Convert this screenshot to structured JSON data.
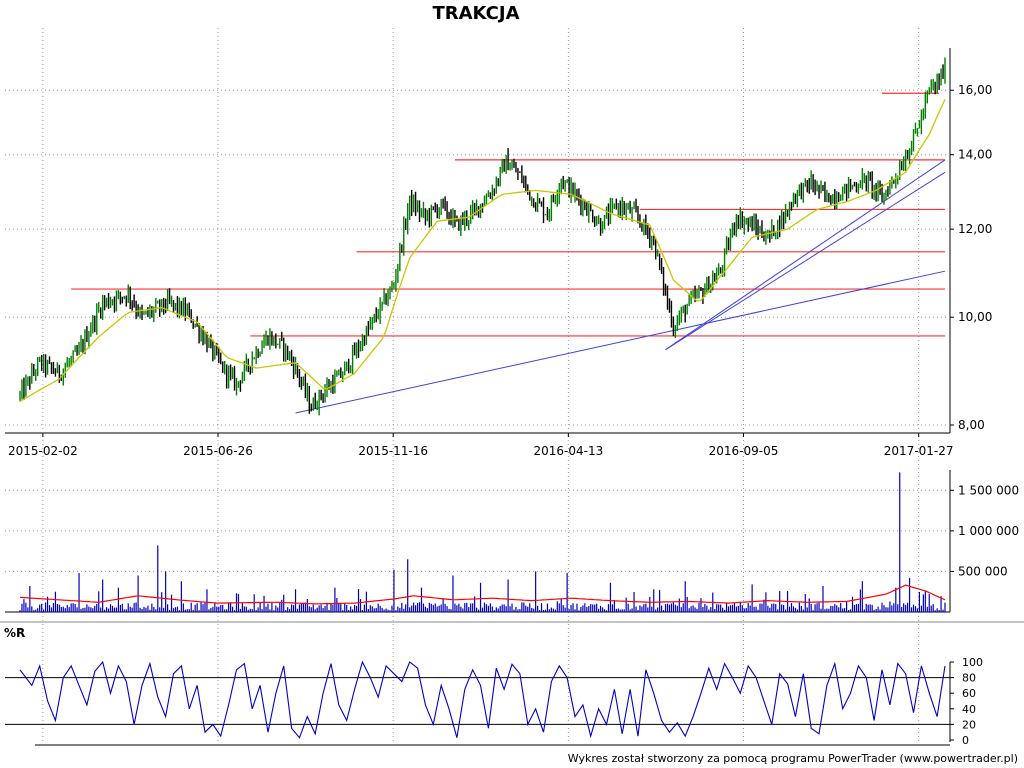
{
  "chart_data": [
    {
      "type": "line",
      "panel": "price",
      "title": "TRAKCJA",
      "y_scale": "log",
      "ylim": [
        7.95,
        18.2
      ],
      "yticks": [
        8,
        10,
        12,
        14,
        16
      ],
      "ytick_labels": [
        "8,00",
        "10,00",
        "12,00",
        "14,00",
        "16,00"
      ],
      "date_labels": [
        "2015-02-02",
        "2015-06-26",
        "2015-11-16",
        "2016-04-13",
        "2016-09-05",
        "2017-01-27"
      ],
      "grid": true,
      "colors": {
        "price": "#000000",
        "up_bar": "#008000",
        "ma": "#c8c800",
        "support": "#ff3030",
        "trend": "#4040e0"
      },
      "series": [
        {
          "kind": "close",
          "points": [
            [
              0,
              8.5
            ],
            [
              10,
              9.1
            ],
            [
              20,
              8.9
            ],
            [
              30,
              9.3
            ],
            [
              42,
              10.3
            ],
            [
              55,
              10.5
            ],
            [
              62,
              10.0
            ],
            [
              75,
              10.3
            ],
            [
              85,
              10.1
            ],
            [
              95,
              9.5
            ],
            [
              103,
              9.0
            ],
            [
              110,
              8.7
            ],
            [
              118,
              9.2
            ],
            [
              126,
              9.6
            ],
            [
              134,
              9.4
            ],
            [
              140,
              9.0
            ],
            [
              148,
              8.3
            ],
            [
              155,
              8.6
            ],
            [
              164,
              8.9
            ],
            [
              172,
              9.4
            ],
            [
              182,
              10.1
            ],
            [
              190,
              10.7
            ],
            [
              198,
              12.7
            ],
            [
              206,
              12.3
            ],
            [
              214,
              12.6
            ],
            [
              222,
              12.1
            ],
            [
              230,
              12.4
            ],
            [
              240,
              13.0
            ],
            [
              247,
              13.8
            ],
            [
              254,
              13.4
            ],
            [
              260,
              12.8
            ],
            [
              268,
              12.4
            ],
            [
              275,
              13.3
            ],
            [
              280,
              13.0
            ],
            [
              287,
              12.6
            ],
            [
              295,
              12.1
            ],
            [
              303,
              12.6
            ],
            [
              312,
              12.4
            ],
            [
              322,
              11.7
            ],
            [
              328,
              10.5
            ],
            [
              332,
              9.8
            ],
            [
              340,
              10.3
            ],
            [
              348,
              10.6
            ],
            [
              356,
              11.0
            ],
            [
              364,
              12.3
            ],
            [
              372,
              12.1
            ],
            [
              380,
              11.8
            ],
            [
              388,
              12.3
            ],
            [
              394,
              12.9
            ],
            [
              402,
              13.2
            ],
            [
              410,
              12.8
            ],
            [
              416,
              12.9
            ],
            [
              422,
              13.1
            ],
            [
              430,
              13.3
            ],
            [
              438,
              12.8
            ],
            [
              446,
              13.5
            ],
            [
              452,
              14.2
            ],
            [
              458,
              15.1
            ],
            [
              462,
              16.0
            ],
            [
              466,
              16.2
            ],
            [
              470,
              16.7
            ]
          ]
        },
        {
          "kind": "ma",
          "points": [
            [
              0,
              8.4
            ],
            [
              20,
              8.8
            ],
            [
              40,
              9.6
            ],
            [
              55,
              10.1
            ],
            [
              72,
              10.2
            ],
            [
              90,
              9.9
            ],
            [
              105,
              9.2
            ],
            [
              120,
              9.0
            ],
            [
              140,
              9.1
            ],
            [
              155,
              8.6
            ],
            [
              170,
              8.9
            ],
            [
              185,
              9.6
            ],
            [
              198,
              11.3
            ],
            [
              212,
              12.2
            ],
            [
              228,
              12.3
            ],
            [
              245,
              12.9
            ],
            [
              262,
              13.0
            ],
            [
              280,
              12.9
            ],
            [
              300,
              12.4
            ],
            [
              320,
              12.1
            ],
            [
              332,
              10.8
            ],
            [
              345,
              10.3
            ],
            [
              360,
              11.1
            ],
            [
              372,
              11.8
            ],
            [
              390,
              12.0
            ],
            [
              405,
              12.5
            ],
            [
              420,
              12.7
            ],
            [
              435,
              13.0
            ],
            [
              450,
              13.5
            ],
            [
              462,
              14.6
            ],
            [
              470,
              15.7
            ]
          ]
        }
      ],
      "support_lines": [
        {
          "x": [
            26,
            470
          ],
          "y": 10.6
        },
        {
          "x": [
            117,
            470
          ],
          "y": 9.62
        },
        {
          "x": [
            171,
            470
          ],
          "y": 11.45
        },
        {
          "x": [
            221,
            470
          ],
          "y": 13.85
        },
        {
          "x": [
            315,
            470
          ],
          "y": 12.5
        },
        {
          "x": [
            438,
            467
          ],
          "y": 15.9
        }
      ],
      "trend_lines": [
        {
          "x0": 140,
          "y0": 8.2,
          "x1": 470,
          "y1": 11.0
        },
        {
          "x0": 328,
          "y0": 9.35,
          "x1": 470,
          "y1": 13.5
        },
        {
          "x0": 328,
          "y0": 9.35,
          "x1": 470,
          "y1": 13.85
        }
      ]
    },
    {
      "type": "bar",
      "panel": "volume",
      "ylim": [
        0,
        1750000
      ],
      "yticks": [
        500000,
        1000000,
        1500000
      ],
      "ytick_labels": [
        "500 000",
        "1 000 000",
        "1 500 000"
      ],
      "colors": {
        "bar": "#0000c0",
        "ma": "#ff0000"
      },
      "spikes": [
        [
          5,
          320000
        ],
        [
          18,
          250000
        ],
        [
          30,
          480000
        ],
        [
          42,
          400000
        ],
        [
          50,
          300000
        ],
        [
          60,
          450000
        ],
        [
          70,
          820000
        ],
        [
          74,
          500000
        ],
        [
          82,
          380000
        ],
        [
          95,
          280000
        ],
        [
          110,
          230000
        ],
        [
          124,
          200000
        ],
        [
          140,
          280000
        ],
        [
          160,
          300000
        ],
        [
          176,
          250000
        ],
        [
          190,
          520000
        ],
        [
          197,
          650000
        ],
        [
          204,
          300000
        ],
        [
          220,
          450000
        ],
        [
          234,
          360000
        ],
        [
          248,
          400000
        ],
        [
          262,
          500000
        ],
        [
          278,
          480000
        ],
        [
          300,
          360000
        ],
        [
          322,
          280000
        ],
        [
          338,
          380000
        ],
        [
          352,
          240000
        ],
        [
          372,
          340000
        ],
        [
          390,
          260000
        ],
        [
          408,
          320000
        ],
        [
          428,
          380000
        ],
        [
          445,
          300000
        ],
        [
          447,
          1720000
        ],
        [
          452,
          420000
        ],
        [
          460,
          260000
        ]
      ],
      "base_level": 70000,
      "ma_points": [
        [
          0,
          180000
        ],
        [
          20,
          150000
        ],
        [
          40,
          120000
        ],
        [
          60,
          200000
        ],
        [
          80,
          150000
        ],
        [
          100,
          110000
        ],
        [
          130,
          120000
        ],
        [
          150,
          100000
        ],
        [
          170,
          110000
        ],
        [
          190,
          160000
        ],
        [
          200,
          200000
        ],
        [
          220,
          150000
        ],
        [
          240,
          170000
        ],
        [
          260,
          140000
        ],
        [
          280,
          170000
        ],
        [
          300,
          140000
        ],
        [
          320,
          120000
        ],
        [
          340,
          130000
        ],
        [
          360,
          110000
        ],
        [
          380,
          140000
        ],
        [
          400,
          120000
        ],
        [
          420,
          130000
        ],
        [
          440,
          220000
        ],
        [
          450,
          330000
        ],
        [
          460,
          260000
        ],
        [
          470,
          150000
        ]
      ]
    },
    {
      "type": "line",
      "panel": "oscillator",
      "label": "%R",
      "ylim": [
        0,
        100
      ],
      "yticks": [
        0,
        20,
        40,
        60,
        80,
        100
      ],
      "ytick_labels": [
        "0",
        "20",
        "40",
        "60",
        "80",
        "100"
      ],
      "reference_lines": [
        20,
        80
      ],
      "colors": {
        "line": "#0000c8"
      },
      "points": [
        [
          0,
          90
        ],
        [
          6,
          70
        ],
        [
          10,
          95
        ],
        [
          14,
          50
        ],
        [
          18,
          25
        ],
        [
          22,
          80
        ],
        [
          26,
          95
        ],
        [
          30,
          70
        ],
        [
          34,
          45
        ],
        [
          38,
          88
        ],
        [
          42,
          100
        ],
        [
          46,
          60
        ],
        [
          50,
          95
        ],
        [
          54,
          75
        ],
        [
          58,
          20
        ],
        [
          62,
          70
        ],
        [
          66,
          98
        ],
        [
          70,
          55
        ],
        [
          74,
          30
        ],
        [
          78,
          85
        ],
        [
          82,
          95
        ],
        [
          86,
          40
        ],
        [
          90,
          70
        ],
        [
          94,
          10
        ],
        [
          98,
          20
        ],
        [
          102,
          5
        ],
        [
          106,
          45
        ],
        [
          110,
          90
        ],
        [
          114,
          98
        ],
        [
          118,
          40
        ],
        [
          122,
          70
        ],
        [
          126,
          10
        ],
        [
          130,
          60
        ],
        [
          134,
          95
        ],
        [
          138,
          15
        ],
        [
          142,
          3
        ],
        [
          146,
          30
        ],
        [
          150,
          8
        ],
        [
          154,
          60
        ],
        [
          158,
          98
        ],
        [
          162,
          45
        ],
        [
          166,
          25
        ],
        [
          170,
          65
        ],
        [
          174,
          100
        ],
        [
          178,
          80
        ],
        [
          182,
          55
        ],
        [
          186,
          95
        ],
        [
          190,
          85
        ],
        [
          194,
          75
        ],
        [
          198,
          100
        ],
        [
          202,
          92
        ],
        [
          206,
          45
        ],
        [
          210,
          20
        ],
        [
          214,
          70
        ],
        [
          218,
          40
        ],
        [
          222,
          3
        ],
        [
          226,
          65
        ],
        [
          230,
          90
        ],
        [
          234,
          70
        ],
        [
          238,
          15
        ],
        [
          242,
          92
        ],
        [
          246,
          65
        ],
        [
          250,
          97
        ],
        [
          254,
          85
        ],
        [
          258,
          20
        ],
        [
          262,
          40
        ],
        [
          266,
          10
        ],
        [
          270,
          75
        ],
        [
          274,
          95
        ],
        [
          278,
          80
        ],
        [
          282,
          30
        ],
        [
          286,
          45
        ],
        [
          290,
          5
        ],
        [
          294,
          40
        ],
        [
          298,
          20
        ],
        [
          302,
          65
        ],
        [
          306,
          8
        ],
        [
          310,
          65
        ],
        [
          314,
          5
        ],
        [
          318,
          90
        ],
        [
          322,
          60
        ],
        [
          326,
          25
        ],
        [
          330,
          10
        ],
        [
          334,
          22
        ],
        [
          338,
          5
        ],
        [
          342,
          30
        ],
        [
          346,
          60
        ],
        [
          350,
          92
        ],
        [
          354,
          65
        ],
        [
          358,
          98
        ],
        [
          362,
          80
        ],
        [
          366,
          60
        ],
        [
          370,
          95
        ],
        [
          374,
          80
        ],
        [
          378,
          50
        ],
        [
          382,
          20
        ],
        [
          386,
          85
        ],
        [
          390,
          72
        ],
        [
          394,
          30
        ],
        [
          398,
          85
        ],
        [
          402,
          15
        ],
        [
          406,
          8
        ],
        [
          410,
          70
        ],
        [
          414,
          98
        ],
        [
          418,
          40
        ],
        [
          422,
          60
        ],
        [
          426,
          95
        ],
        [
          430,
          80
        ],
        [
          434,
          25
        ],
        [
          438,
          90
        ],
        [
          442,
          45
        ],
        [
          446,
          98
        ],
        [
          450,
          85
        ],
        [
          454,
          35
        ],
        [
          458,
          95
        ],
        [
          462,
          60
        ],
        [
          466,
          30
        ],
        [
          470,
          95
        ]
      ]
    }
  ],
  "footer": "Wykres został stworzony za pomocą programu PowerTrader (www.powertrader.pl)"
}
